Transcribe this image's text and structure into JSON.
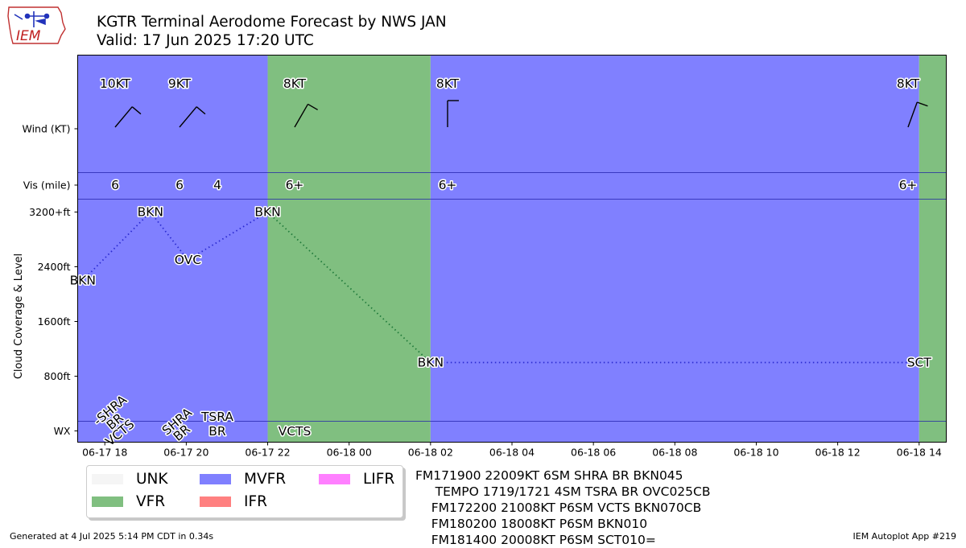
{
  "logo_text": "IEM",
  "title": "KGTR Terminal Aerodome Forecast by NWS JAN",
  "subtitle": "Valid: 17 Jun 2025 17:20 UTC",
  "colors": {
    "UNK": "#f5f5f5",
    "VFR": "#80bf80",
    "MVFR": "#8080ff",
    "IFR": "#ff8080",
    "LIFR": "#ff80ff",
    "level_line_mvfr": "#2b2bd1",
    "level_line_vfr": "#207a3a"
  },
  "legend": [
    {
      "label": "UNK",
      "color": "#f5f5f5"
    },
    {
      "label": "VFR",
      "color": "#80bf80"
    },
    {
      "label": "MVFR",
      "color": "#8080ff"
    },
    {
      "label": "IFR",
      "color": "#ff8080"
    },
    {
      "label": "LIFR",
      "color": "#ff80ff"
    }
  ],
  "taf_text": [
    "FM171900 22009KT 6SM SHRA BR BKN045",
    "     TEMPO 1719/1721 4SM TSRA BR OVC025CB",
    "    FM172200 21008KT P6SM VCTS BKN070CB",
    "    FM180200 18008KT P6SM BKN010",
    "    FM181400 20008KT P6SM SCT010="
  ],
  "footer_left": "Generated at 4 Jul 2025 5:14 PM CDT in 0.34s",
  "footer_right": "IEM Autoplot App #219",
  "chart_data": {
    "type": "timeline",
    "ylabel": "Cloud Coverage & Level",
    "xlim": [
      "2025-06-17 17:20",
      "2025-06-18 14:40"
    ],
    "x_ticks": [
      "06-17 18",
      "06-17 20",
      "06-17 22",
      "06-18 00",
      "06-18 02",
      "06-18 04",
      "06-18 06",
      "06-18 08",
      "06-18 10",
      "06-18 12",
      "06-18 14"
    ],
    "y_ticks": [
      {
        "label": "WX",
        "value": 0
      },
      {
        "label": "800ft",
        "value": 800
      },
      {
        "label": "1600ft",
        "value": 1600
      },
      {
        "label": "2400ft",
        "value": 2400
      },
      {
        "label": "3200+ft",
        "value": 3200
      },
      {
        "label": "Vis (mile)",
        "row": "vis"
      },
      {
        "label": "Wind (KT)",
        "row": "wind"
      }
    ],
    "category_bands": [
      {
        "start": "2025-06-17 17:20",
        "end": "2025-06-17 22:00",
        "category": "MVFR"
      },
      {
        "start": "2025-06-17 22:00",
        "end": "2025-06-18 02:00",
        "category": "VFR"
      },
      {
        "start": "2025-06-18 02:00",
        "end": "2025-06-18 14:00",
        "category": "MVFR"
      },
      {
        "start": "2025-06-18 14:00",
        "end": "2025-06-18 14:40",
        "category": "VFR"
      }
    ],
    "periods": [
      {
        "time": "2025-06-17 19:00",
        "wind_dir": 220,
        "wind_kt": 10,
        "wind_label": "10KT",
        "vis": "6",
        "cloud": "BKN",
        "level_ft": 2200,
        "wx": [
          "-SHRA",
          "BR",
          "VCTS"
        ]
      },
      {
        "time": "2025-06-17 19:00",
        "wind_dir": 220,
        "wind_kt": 9,
        "wind_label": "9KT",
        "vis": "6",
        "cloud": "BKN",
        "level_ft": 3200,
        "wx": [
          "SHRA",
          "BR"
        ]
      },
      {
        "time": "2025-06-17 20:00",
        "vis": "4",
        "cloud": "OVC",
        "level_ft": 2500,
        "wx": [
          "TSRA",
          "BR"
        ]
      },
      {
        "time": "2025-06-17 22:00",
        "wind_dir": 210,
        "wind_kt": 8,
        "wind_label": "8KT",
        "vis": "6+",
        "cloud": "BKN",
        "level_ft": 3200,
        "wx": [
          "VCTS"
        ]
      },
      {
        "time": "2025-06-18 02:00",
        "wind_dir": 180,
        "wind_kt": 8,
        "wind_label": "8KT",
        "vis": "6+",
        "cloud": "BKN",
        "level_ft": 1000,
        "wx": []
      },
      {
        "time": "2025-06-18 14:00",
        "wind_dir": 200,
        "wind_kt": 8,
        "wind_label": "8KT",
        "vis": "6+",
        "cloud": "SCT",
        "level_ft": 1000,
        "wx": []
      }
    ]
  }
}
